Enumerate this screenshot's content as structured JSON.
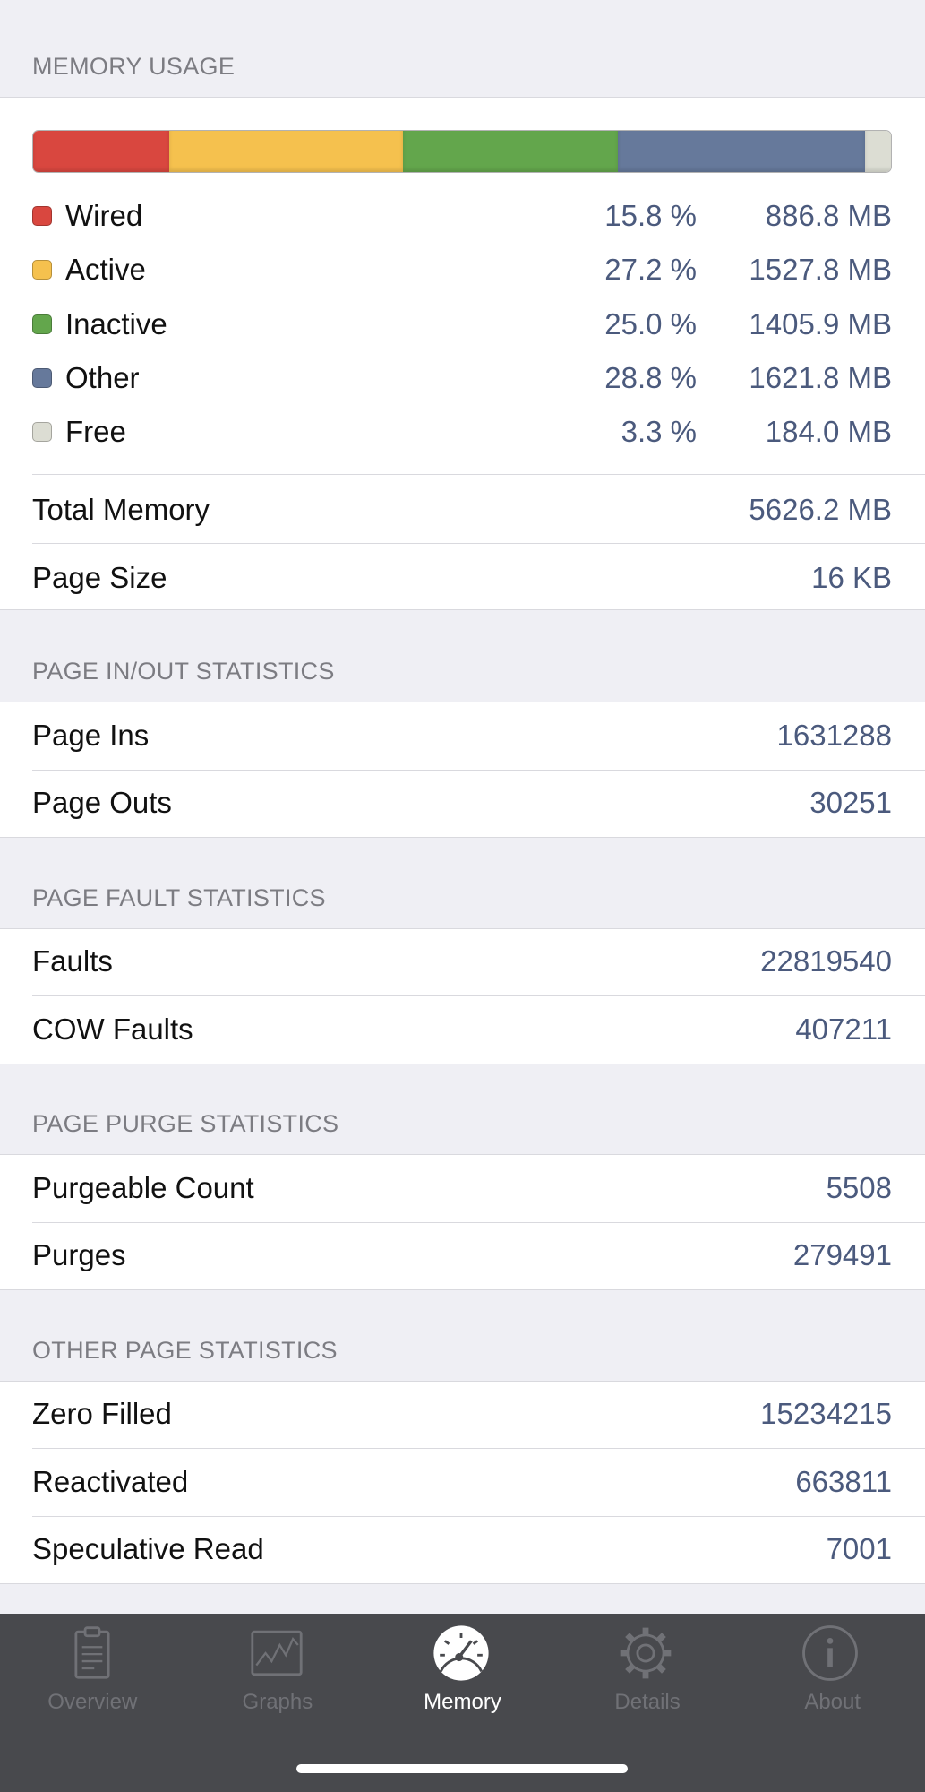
{
  "memory_usage": {
    "header": "MEMORY USAGE",
    "items": [
      {
        "name": "Wired",
        "color": "#d9473f",
        "percent": 15.8,
        "percent_label": "15.8 %",
        "size": "886.8 MB"
      },
      {
        "name": "Active",
        "color": "#f5c14e",
        "percent": 27.2,
        "percent_label": "27.2 %",
        "size": "1527.8 MB"
      },
      {
        "name": "Inactive",
        "color": "#63a64c",
        "percent": 25.0,
        "percent_label": "25.0 %",
        "size": "1405.9 MB"
      },
      {
        "name": "Other",
        "color": "#66799b",
        "percent": 28.8,
        "percent_label": "28.8 %",
        "size": "1621.8 MB"
      },
      {
        "name": "Free",
        "color": "#dcddd3",
        "percent": 3.3,
        "percent_label": "3.3 %",
        "size": "184.0 MB"
      }
    ],
    "rows": [
      {
        "label": "Total Memory",
        "value": "5626.2 MB"
      },
      {
        "label": "Page Size",
        "value": "16 KB"
      }
    ]
  },
  "sections": [
    {
      "header": "PAGE IN/OUT STATISTICS",
      "rows": [
        {
          "label": "Page Ins",
          "value": "1631288"
        },
        {
          "label": "Page Outs",
          "value": "30251"
        }
      ]
    },
    {
      "header": "PAGE FAULT STATISTICS",
      "rows": [
        {
          "label": "Faults",
          "value": "22819540"
        },
        {
          "label": "COW Faults",
          "value": "407211"
        }
      ]
    },
    {
      "header": "PAGE PURGE STATISTICS",
      "rows": [
        {
          "label": "Purgeable Count",
          "value": "5508"
        },
        {
          "label": "Purges",
          "value": "279491"
        }
      ]
    },
    {
      "header": "OTHER PAGE STATISTICS",
      "rows": [
        {
          "label": "Zero Filled",
          "value": "15234215"
        },
        {
          "label": "Reactivated",
          "value": "663811"
        },
        {
          "label": "Speculative Read",
          "value": "7001"
        }
      ]
    }
  ],
  "tab_bar": {
    "tabs": [
      {
        "label": "Overview"
      },
      {
        "label": "Graphs"
      },
      {
        "label": "Memory"
      },
      {
        "label": "Details"
      },
      {
        "label": "About"
      }
    ],
    "active": 2
  }
}
